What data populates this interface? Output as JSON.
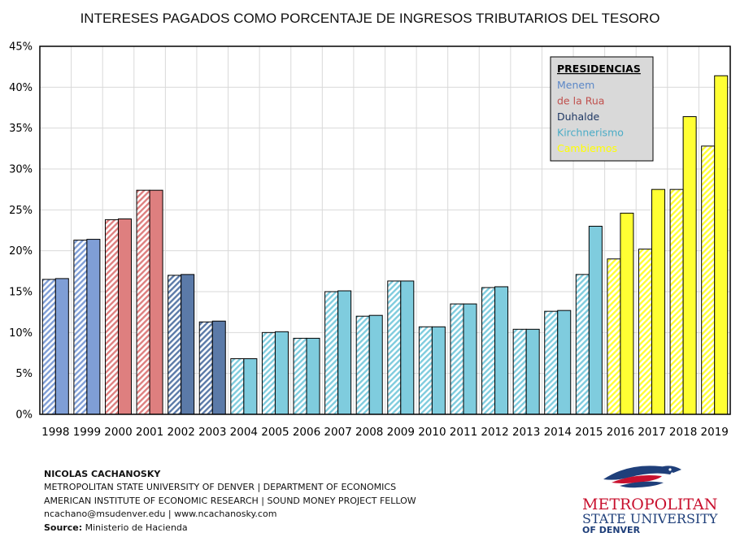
{
  "chart_data": {
    "type": "bar",
    "title": "INTERESES PAGADOS COMO PORCENTAJE DE INGRESOS TRIBUTARIOS  DEL TESORO",
    "xlabel": "",
    "ylabel": "",
    "ylim": [
      0,
      45
    ],
    "y_ticks": [
      "0%",
      "5%",
      "10%",
      "15%",
      "20%",
      "25%",
      "30%",
      "35%",
      "40%",
      "45%"
    ],
    "grid": true,
    "categories": [
      "1998",
      "1999",
      "2000",
      "2001",
      "2002",
      "2003",
      "2004",
      "2005",
      "2006",
      "2007",
      "2008",
      "2009",
      "2010",
      "2011",
      "2012",
      "2013",
      "2014",
      "2015",
      "2016",
      "2017",
      "2018",
      "2019"
    ],
    "series": [
      {
        "style": "hatched",
        "values": [
          16.5,
          21.3,
          23.8,
          27.4,
          17.0,
          11.3,
          6.8,
          10.0,
          9.3,
          15.0,
          12.0,
          16.3,
          10.7,
          13.5,
          15.5,
          10.4,
          12.6,
          17.1,
          19.0,
          20.2,
          27.5,
          32.8
        ]
      },
      {
        "style": "solid",
        "values": [
          16.6,
          21.4,
          23.9,
          27.4,
          17.1,
          11.4,
          6.8,
          10.1,
          9.3,
          15.1,
          12.1,
          16.3,
          10.7,
          13.5,
          15.6,
          10.4,
          12.7,
          23.0,
          24.6,
          27.5,
          36.4,
          41.4
        ]
      }
    ],
    "bar_presidency": [
      0,
      0,
      1,
      1,
      2,
      2,
      3,
      3,
      3,
      3,
      3,
      3,
      3,
      3,
      3,
      3,
      3,
      3,
      4,
      4,
      4,
      4
    ],
    "legend": {
      "title": "PRESIDENCIAS",
      "placement": "top-right",
      "items": [
        {
          "label": "Menem",
          "color": "#7F9ED6",
          "text_color": "#5B87C7"
        },
        {
          "label": "de la Rua",
          "color": "#DE7F7F",
          "text_color": "#C0504D"
        },
        {
          "label": "Duhalde",
          "color": "#5B7AA8",
          "text_color": "#1F3864"
        },
        {
          "label": "Kirchnerismo",
          "color": "#7FCCDE",
          "text_color": "#4BACC6"
        },
        {
          "label": "Cambiemos",
          "color": "#FFFF33",
          "text_color": "#FFFF00"
        }
      ]
    }
  },
  "footer": {
    "author": "NICOLAS CACHANOSKY",
    "line1": "METROPOLITAN  STATE UNIVERSITY  OF DENVER  | DEPARTMENT  OF ECONOMICS",
    "line2": "AMERICAN  INSTITUTE OF ECONOMIC RESEARCH  | SOUND  MONEY  PROJECT FELLOW",
    "line3": "ncachano@msudenver.edu | www.ncachanosky.com",
    "source_label": "Source:",
    "source_value": " Ministerio de Hacienda"
  },
  "logo": {
    "line1": "METROPOLITAN",
    "line2": "STATE UNIVERSITY",
    "line3": "OF DENVER",
    "color": "#C8102E",
    "navy": "#003366"
  }
}
